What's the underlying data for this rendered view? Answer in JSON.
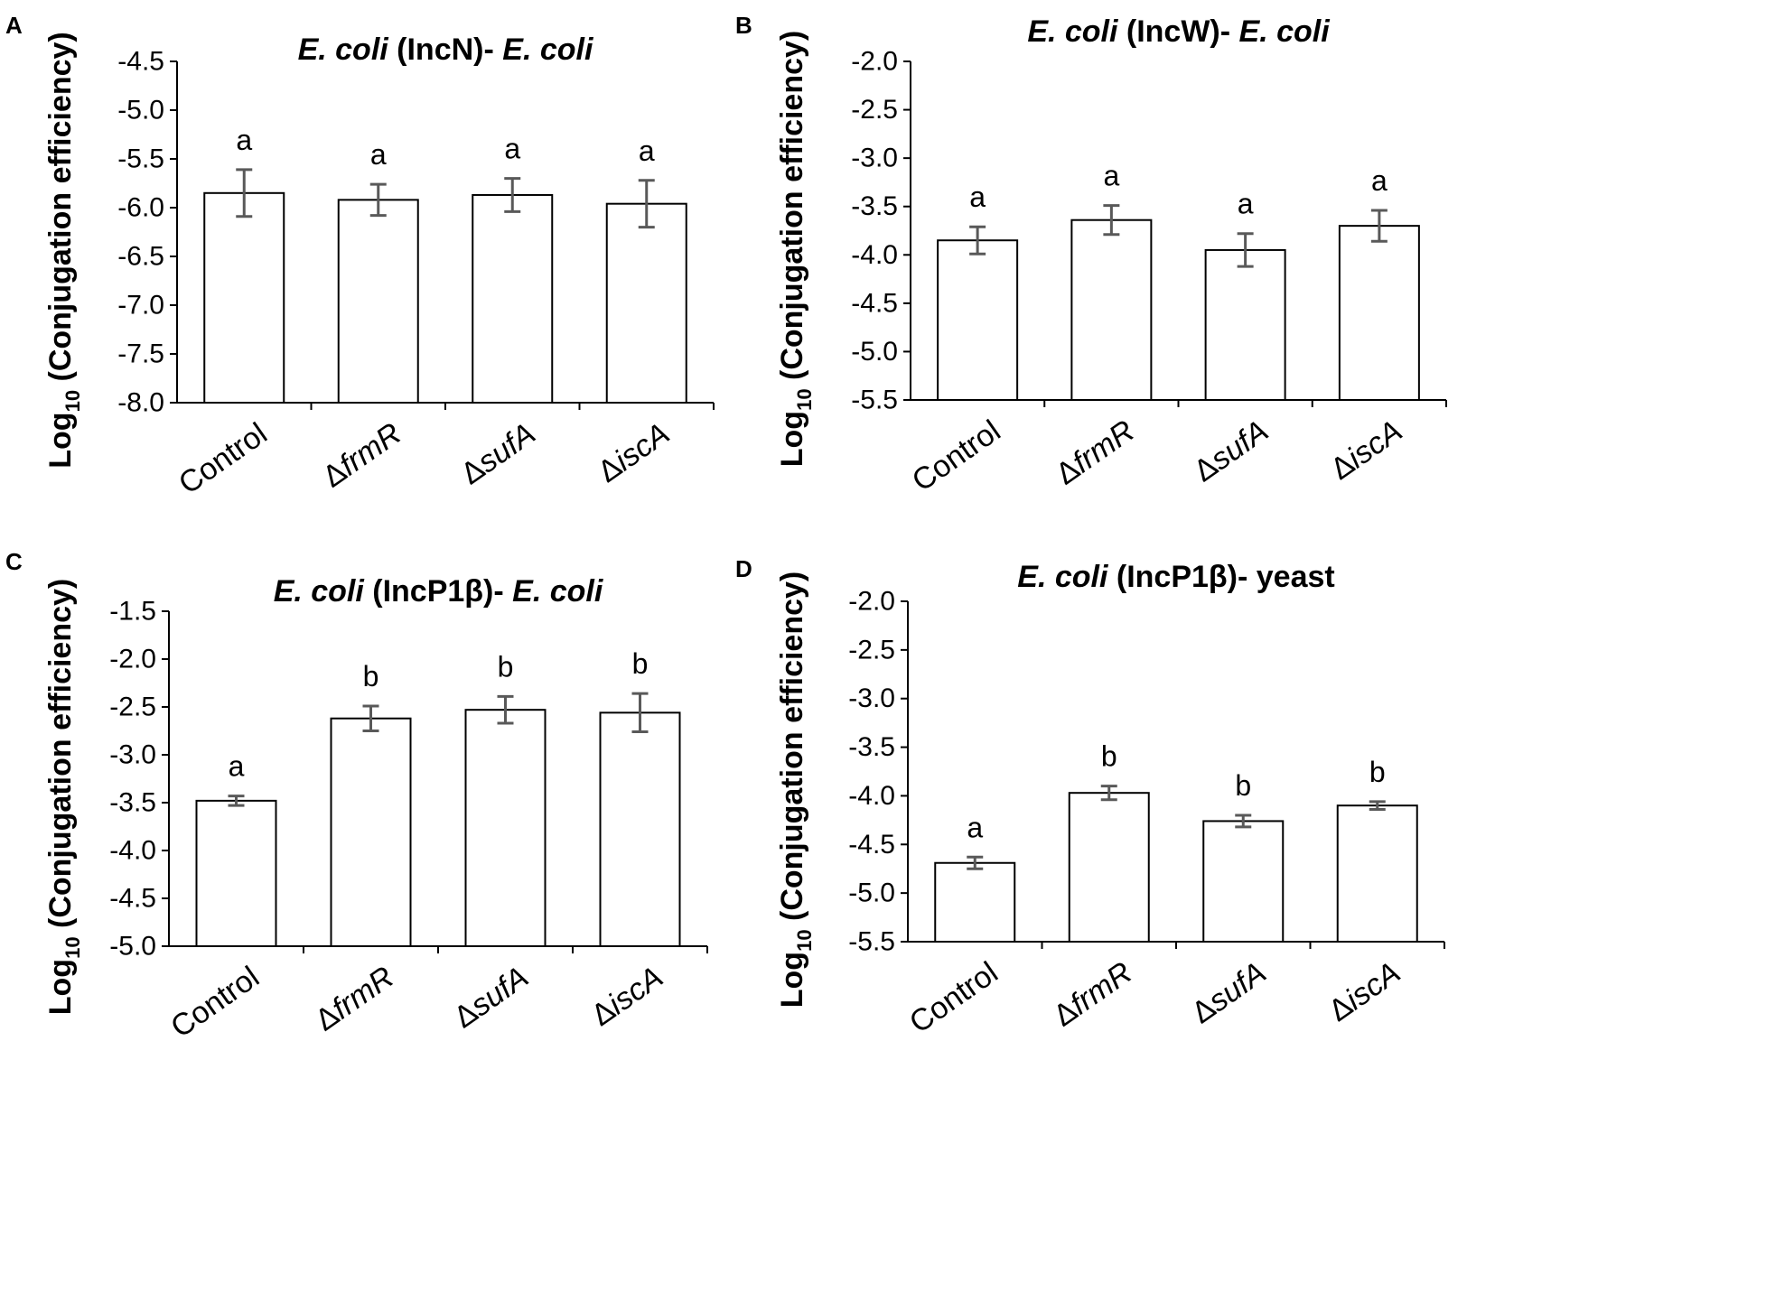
{
  "chart_data": [
    {
      "panel": "A",
      "type": "bar",
      "title": {
        "italic_pre": "E. coli",
        "mid": " (IncN)- ",
        "italic_post": "E. coli"
      },
      "ylabel": {
        "prefix": "Log",
        "sub": "10",
        "suffix": " (Conjugation efficiency)"
      },
      "ylim": [
        -8.0,
        -4.5
      ],
      "yticks": [
        "-4.5",
        "-5.0",
        "-5.5",
        "-6.0",
        "-6.5",
        "-7.0",
        "-7.5",
        "-8.0"
      ],
      "categories": [
        {
          "pre": "",
          "italic": "",
          "text": "Control"
        },
        {
          "pre": "Δ",
          "italic": "frmR",
          "text": ""
        },
        {
          "pre": "Δ",
          "italic": "sufA",
          "text": ""
        },
        {
          "pre": "Δ",
          "italic": "iscA",
          "text": ""
        }
      ],
      "values": [
        -5.85,
        -5.92,
        -5.87,
        -5.96
      ],
      "errors": [
        0.24,
        0.16,
        0.17,
        0.24
      ],
      "letters": [
        "a",
        "a",
        "a",
        "a"
      ]
    },
    {
      "panel": "B",
      "type": "bar",
      "title": {
        "italic_pre": "E. coli",
        "mid": " (IncW)- ",
        "italic_post": "E. coli"
      },
      "ylabel": {
        "prefix": "Log",
        "sub": "10",
        "suffix": " (Conjugation efficiency)"
      },
      "ylim": [
        -5.5,
        -2.0
      ],
      "yticks": [
        "-2.0",
        "-2.5",
        "-3.0",
        "-3.5",
        "-4.0",
        "-4.5",
        "-5.0",
        "-5.5"
      ],
      "categories": [
        {
          "pre": "",
          "italic": "",
          "text": "Control"
        },
        {
          "pre": "Δ",
          "italic": "frmR",
          "text": ""
        },
        {
          "pre": "Δ",
          "italic": "sufA",
          "text": ""
        },
        {
          "pre": "Δ",
          "italic": "iscA",
          "text": ""
        }
      ],
      "values": [
        -3.85,
        -3.64,
        -3.95,
        -3.7
      ],
      "errors": [
        0.14,
        0.15,
        0.17,
        0.16
      ],
      "letters": [
        "a",
        "a",
        "a",
        "a"
      ]
    },
    {
      "panel": "C",
      "type": "bar",
      "title": {
        "italic_pre": "E. coli",
        "mid": " (IncP1β)- ",
        "italic_post": "E. coli"
      },
      "ylabel": {
        "prefix": "Log",
        "sub": "10",
        "suffix": " (Conjugation efficiency)"
      },
      "ylim": [
        -5.0,
        -1.5
      ],
      "yticks": [
        "-1.5",
        "-2.0",
        "-2.5",
        "-3.0",
        "-3.5",
        "-4.0",
        "-4.5",
        "-5.0"
      ],
      "categories": [
        {
          "pre": "",
          "italic": "",
          "text": "Control"
        },
        {
          "pre": "Δ",
          "italic": "frmR",
          "text": ""
        },
        {
          "pre": "Δ",
          "italic": "sufA",
          "text": ""
        },
        {
          "pre": "Δ",
          "italic": "iscA",
          "text": ""
        }
      ],
      "values": [
        -3.48,
        -2.62,
        -2.53,
        -2.56
      ],
      "errors": [
        0.05,
        0.13,
        0.14,
        0.2
      ],
      "letters": [
        "a",
        "b",
        "b",
        "b"
      ]
    },
    {
      "panel": "D",
      "type": "bar",
      "title": {
        "italic_pre": "E. coli",
        "mid": " (IncP1β)- yeast",
        "italic_post": ""
      },
      "ylabel": {
        "prefix": "Log",
        "sub": "10",
        "suffix": " (Conjugation efficiency)"
      },
      "ylim": [
        -5.5,
        -2.0
      ],
      "yticks": [
        "-2.0",
        "-2.5",
        "-3.0",
        "-3.5",
        "-4.0",
        "-4.5",
        "-5.0",
        "-5.5"
      ],
      "categories": [
        {
          "pre": "",
          "italic": "",
          "text": "Control"
        },
        {
          "pre": "Δ",
          "italic": "frmR",
          "text": ""
        },
        {
          "pre": "Δ",
          "italic": "sufA",
          "text": ""
        },
        {
          "pre": "Δ",
          "italic": "iscA",
          "text": ""
        }
      ],
      "values": [
        -4.69,
        -3.97,
        -4.26,
        -4.1
      ],
      "errors": [
        0.06,
        0.07,
        0.06,
        0.04
      ],
      "letters": [
        "a",
        "b",
        "b",
        "b"
      ]
    }
  ],
  "colors": {
    "bar_fill": "#ffffff",
    "bar_stroke": "#000000",
    "axis": "#000000",
    "error_bar": "#595959"
  }
}
